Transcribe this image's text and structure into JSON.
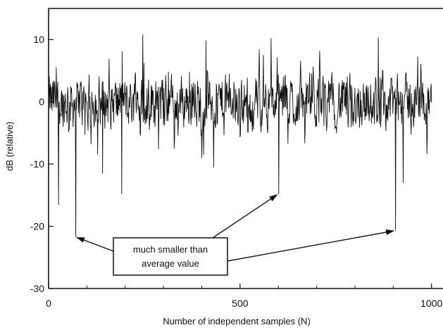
{
  "chart_data": {
    "type": "line",
    "title": "",
    "xlabel": "Number of independent samples (N)",
    "ylabel": "dB (relative)",
    "xlim": [
      0,
      1030
    ],
    "ylim": [
      -30,
      15
    ],
    "xticks": [
      0,
      500,
      1000
    ],
    "xtick_labels": [
      "0",
      "500",
      "1000"
    ],
    "yticks": [
      10,
      0,
      -10,
      -20,
      -30
    ],
    "ytick_labels": [
      "10",
      "0",
      "-10",
      "-20",
      "-30"
    ],
    "grid": false,
    "series": [
      {
        "values_description_free": true,
        "sample_count": 1000,
        "mean_db": 0,
        "spread_db": 3.5,
        "deep_fades": [
          {
            "x": 25,
            "y": -16.5
          },
          {
            "x": 70,
            "y": -21.7
          },
          {
            "x": 140,
            "y": -11.5
          },
          {
            "x": 190,
            "y": -14.8
          },
          {
            "x": 430,
            "y": -10.5
          },
          {
            "x": 600,
            "y": -14.8
          },
          {
            "x": 905,
            "y": -20.7
          },
          {
            "x": 925,
            "y": -13.0
          }
        ],
        "peaks": [
          {
            "x": 245,
            "y": 10.8
          },
          {
            "x": 410,
            "y": 9.8
          },
          {
            "x": 580,
            "y": 10.2
          },
          {
            "x": 860,
            "y": 10.3
          },
          {
            "x": 1005,
            "y": 10.6
          }
        ]
      }
    ],
    "annotation": {
      "lines": [
        "much smaller than",
        "average value"
      ],
      "targets": [
        {
          "x": 70,
          "y": -21.7
        },
        {
          "x": 600,
          "y": -14.8
        },
        {
          "x": 905,
          "y": -20.7
        }
      ]
    }
  }
}
